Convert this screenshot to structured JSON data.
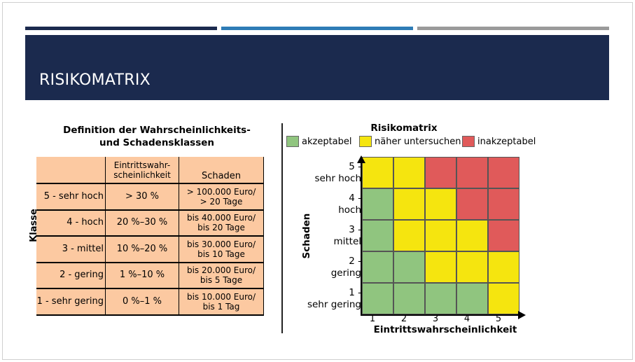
{
  "slide": {
    "title": "RISIKOMATRIX",
    "colors": {
      "header_bg": "#1b2a4e",
      "bar_1": "#1b2a4e",
      "bar_2": "#2e7cb6",
      "bar_3": "#9a9a9a"
    }
  },
  "table": {
    "title_line1": "Definition der Wahrscheinlichkeits-",
    "title_line2": "und Schadensklassen",
    "side_label": "Klasse",
    "col_headers": {
      "probability": "Eintrittswahr-\nscheinlichkeit",
      "damage": "Schaden"
    },
    "rows": [
      {
        "klasse": "5 - sehr hoch",
        "probability": "> 30 %",
        "damage": "> 100.000 Euro/\n> 20 Tage"
      },
      {
        "klasse": "4 - hoch",
        "probability": "20 %–30 %",
        "damage": "bis 40.000 Euro/\nbis 20 Tage"
      },
      {
        "klasse": "3 - mittel",
        "probability": "10 %–20 %",
        "damage": "bis 30.000 Euro/\nbis 10 Tage"
      },
      {
        "klasse": "2 - gering",
        "probability": "1 %–10 %",
        "damage": "bis 20.000 Euro/\nbis 5 Tage"
      },
      {
        "klasse": "1 - sehr gering",
        "probability": "0 %–1 %",
        "damage": "bis 10.000 Euro/\nbis 1 Tag"
      }
    ],
    "color": "#fcc9a1"
  },
  "matrix": {
    "title": "Risikomatrix",
    "legend": [
      {
        "key": "g",
        "label": "akzeptabel",
        "color": "#90c57f"
      },
      {
        "key": "y",
        "label": "näher untersuchen",
        "color": "#f5e50f"
      },
      {
        "key": "r",
        "label": "inakzeptabel",
        "color": "#e05a5a"
      }
    ],
    "y_axis_title": "Schaden",
    "x_axis_title": "Eintrittswahrscheinlichkeit",
    "y_labels": [
      "5 -\nsehr hoch",
      "4 -\nhoch",
      "3 -\nmittel",
      "2 -\ngering",
      "1 -\nsehr gering"
    ],
    "x_labels": [
      "1",
      "2",
      "3",
      "4",
      "5"
    ],
    "grid": [
      [
        "y",
        "y",
        "r",
        "r",
        "r"
      ],
      [
        "g",
        "y",
        "y",
        "r",
        "r"
      ],
      [
        "g",
        "y",
        "y",
        "y",
        "r"
      ],
      [
        "g",
        "g",
        "y",
        "y",
        "y"
      ],
      [
        "g",
        "g",
        "g",
        "g",
        "y"
      ]
    ]
  }
}
